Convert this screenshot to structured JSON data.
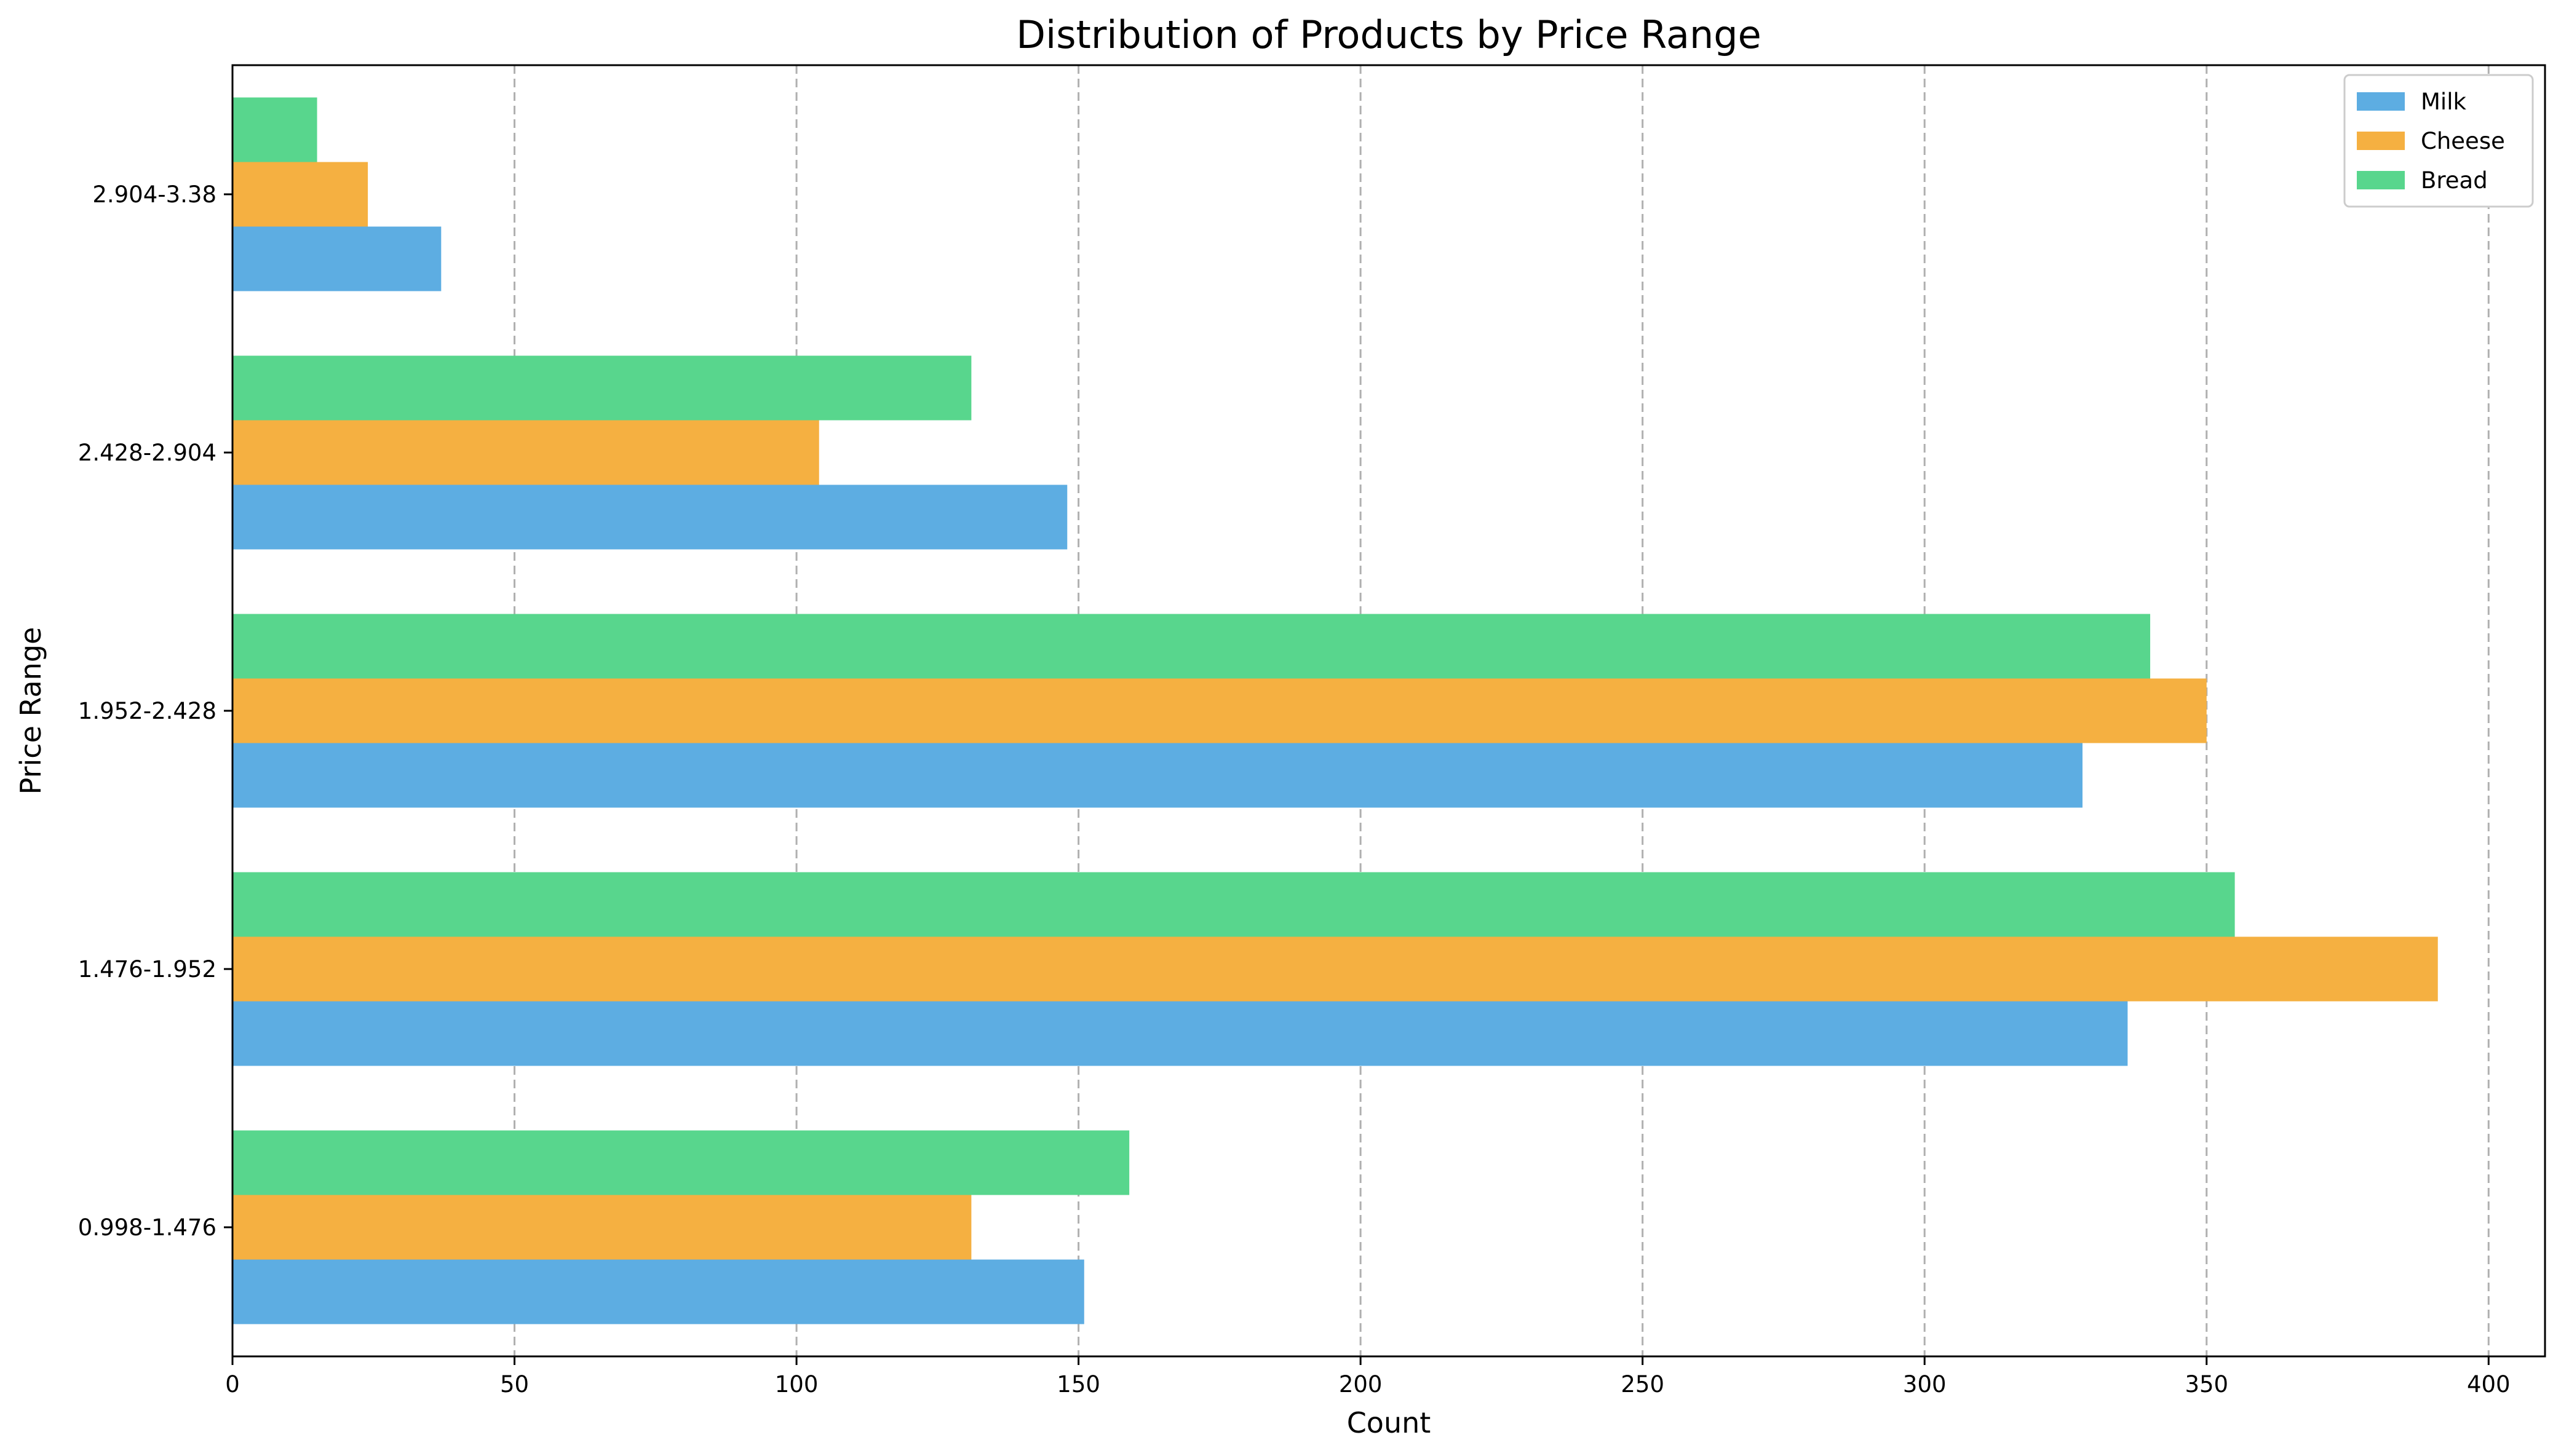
{
  "chart_data": {
    "type": "bar",
    "orientation": "horizontal",
    "title": "Distribution of Products by Price Range",
    "xlabel": "Count",
    "ylabel": "Price Range",
    "xlim": [
      0,
      410
    ],
    "xticks": [
      0,
      50,
      100,
      150,
      200,
      250,
      300,
      350,
      400
    ],
    "categories": [
      "0.998-1.476",
      "1.476-1.952",
      "1.952-2.428",
      "2.428-2.904",
      "2.904-3.38"
    ],
    "series": [
      {
        "name": "Milk",
        "color": "#5dade2",
        "values": [
          151,
          336,
          328,
          148,
          37
        ]
      },
      {
        "name": "Cheese",
        "color": "#f5b041",
        "values": [
          131,
          391,
          350,
          104,
          24
        ]
      },
      {
        "name": "Bread",
        "color": "#58d68d",
        "values": [
          159,
          355,
          340,
          131,
          15
        ]
      }
    ],
    "grid": "vertical dashed",
    "legend_position": "top-right"
  }
}
